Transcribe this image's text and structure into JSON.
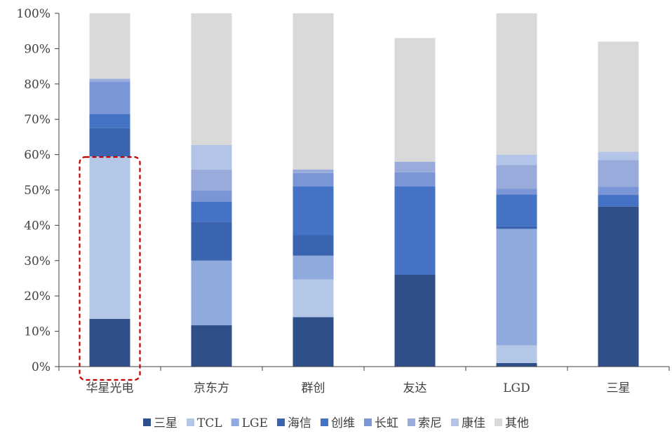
{
  "chart_data": {
    "type": "bar",
    "stacked": true,
    "percent": true,
    "title": "",
    "xlabel": "",
    "ylabel": "",
    "ylim": [
      0,
      100
    ],
    "ytick_labels": [
      "0%",
      "10%",
      "20%",
      "30%",
      "40%",
      "50%",
      "60%",
      "70%",
      "80%",
      "90%",
      "100%"
    ],
    "categories": [
      "华星光电",
      "京东方",
      "群创",
      "友达",
      "LGD",
      "三星"
    ],
    "series": [
      {
        "name": "三星",
        "color": "#2f4f8a",
        "values": [
          13.5,
          11.7,
          14.0,
          26.0,
          1.0,
          45.3
        ]
      },
      {
        "name": "TCL",
        "color": "#b4c7e7",
        "values": [
          46.0,
          0,
          10.7,
          0,
          5.0,
          0
        ]
      },
      {
        "name": "LGE",
        "color": "#8faadc",
        "values": [
          0,
          18.3,
          6.7,
          0,
          33.0,
          0
        ]
      },
      {
        "name": "海信",
        "color": "#3a63b0",
        "values": [
          8.0,
          11.0,
          5.8,
          0,
          0.7,
          0
        ]
      },
      {
        "name": "创维",
        "color": "#4472c4",
        "values": [
          4.0,
          5.7,
          13.8,
          25.0,
          9.0,
          3.3
        ]
      },
      {
        "name": "长虹",
        "color": "#7b96d6",
        "values": [
          9.2,
          3.1,
          3.8,
          4.0,
          1.6,
          2.3
        ]
      },
      {
        "name": "索尼",
        "color": "#98abdb",
        "values": [
          0.8,
          6.0,
          1.0,
          3.0,
          6.8,
          7.6
        ]
      },
      {
        "name": "康佳",
        "color": "#b4c4e8",
        "values": [
          0,
          6.9,
          0,
          0,
          2.9,
          2.3
        ]
      },
      {
        "name": "其他",
        "color": "#d9d9d9",
        "values": [
          18.5,
          37.3,
          44.2,
          35.0,
          40.0,
          31.2
        ]
      }
    ],
    "grid": false,
    "legend_position": "bottom",
    "highlight": {
      "category": "华星光电",
      "style": "dashed-box",
      "color": "#c00000"
    }
  }
}
